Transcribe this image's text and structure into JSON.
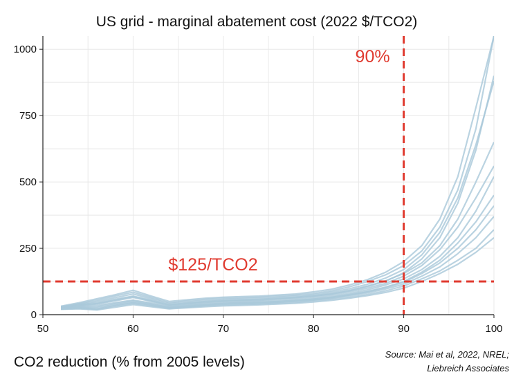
{
  "chart_data": {
    "type": "line",
    "title": "US grid - marginal abatement cost (2022 $/TCO2)",
    "xlabel": "CO2 reduction (% from 2005 levels)",
    "ylabel": "",
    "xlim": [
      50,
      100
    ],
    "ylim": [
      0,
      1050
    ],
    "x_ticks": [
      50,
      60,
      70,
      80,
      90,
      100
    ],
    "y_ticks": [
      0,
      250,
      500,
      750,
      1000
    ],
    "grid": true,
    "legend": "none",
    "series_color": "#a9c8d9",
    "reference_color": "#e03a2f",
    "source": [
      "Source: Mai et al, 2022, NREL;",
      "Liebreich Associates"
    ],
    "reference_lines": [
      {
        "orientation": "horizontal",
        "value": 125,
        "label": "$125/TCO2"
      },
      {
        "orientation": "vertical",
        "value": 90,
        "label": "90%"
      }
    ],
    "x": [
      52,
      54,
      56,
      58,
      60,
      62,
      64,
      66,
      68,
      70,
      72,
      74,
      76,
      78,
      80,
      82,
      84,
      86,
      88,
      90,
      92,
      94,
      96,
      98,
      100
    ],
    "series": [
      {
        "values": [
          30,
          42,
          55,
          70,
          85,
          65,
          45,
          52,
          58,
          62,
          64,
          66,
          70,
          74,
          80,
          90,
          105,
          125,
          150,
          185,
          240,
          330,
          470,
          700,
          1050
        ]
      },
      {
        "values": [
          28,
          38,
          45,
          58,
          70,
          55,
          38,
          44,
          50,
          54,
          56,
          58,
          62,
          66,
          72,
          80,
          92,
          108,
          128,
          155,
          195,
          260,
          360,
          500,
          650
        ]
      },
      {
        "values": [
          25,
          32,
          35,
          45,
          55,
          44,
          30,
          36,
          42,
          46,
          48,
          50,
          53,
          57,
          62,
          70,
          80,
          94,
          112,
          135,
          170,
          220,
          290,
          390,
          520
        ]
      },
      {
        "values": [
          22,
          26,
          22,
          35,
          45,
          36,
          25,
          30,
          35,
          39,
          41,
          43,
          46,
          50,
          55,
          62,
          71,
          82,
          97,
          115,
          145,
          180,
          230,
          290,
          370
        ]
      },
      {
        "values": [
          20,
          22,
          18,
          28,
          38,
          30,
          22,
          26,
          30,
          33,
          35,
          37,
          40,
          43,
          48,
          54,
          62,
          72,
          84,
          100,
          125,
          155,
          190,
          235,
          290
        ]
      },
      {
        "values": [
          32,
          45,
          60,
          75,
          92,
          70,
          50,
          56,
          62,
          66,
          68,
          70,
          74,
          78,
          86,
          96,
          112,
          132,
          160,
          200,
          260,
          360,
          520,
          780,
          1050
        ]
      },
      {
        "values": [
          26,
          35,
          40,
          52,
          65,
          50,
          34,
          40,
          46,
          50,
          52,
          54,
          58,
          62,
          67,
          75,
          86,
          100,
          118,
          145,
          185,
          245,
          330,
          440,
          560
        ]
      },
      {
        "values": [
          24,
          30,
          30,
          42,
          52,
          41,
          28,
          34,
          39,
          43,
          45,
          47,
          50,
          54,
          59,
          66,
          76,
          88,
          104,
          125,
          160,
          205,
          270,
          350,
          450
        ]
      },
      {
        "values": [
          27,
          36,
          42,
          55,
          68,
          52,
          36,
          42,
          48,
          52,
          54,
          56,
          60,
          64,
          70,
          78,
          90,
          106,
          126,
          158,
          210,
          290,
          420,
          620,
          900
        ]
      },
      {
        "values": [
          21,
          24,
          20,
          32,
          42,
          33,
          24,
          28,
          33,
          36,
          38,
          40,
          43,
          46,
          52,
          58,
          66,
          76,
          90,
          108,
          135,
          165,
          205,
          250,
          320
        ]
      },
      {
        "values": [
          29,
          40,
          50,
          64,
          78,
          60,
          42,
          48,
          54,
          58,
          60,
          62,
          66,
          70,
          76,
          85,
          98,
          115,
          138,
          170,
          225,
          310,
          440,
          640,
          880
        ]
      },
      {
        "values": [
          23,
          28,
          26,
          38,
          48,
          38,
          26,
          31,
          37,
          41,
          43,
          45,
          48,
          52,
          57,
          64,
          74,
          86,
          102,
          122,
          155,
          195,
          250,
          320,
          410
        ]
      }
    ]
  }
}
